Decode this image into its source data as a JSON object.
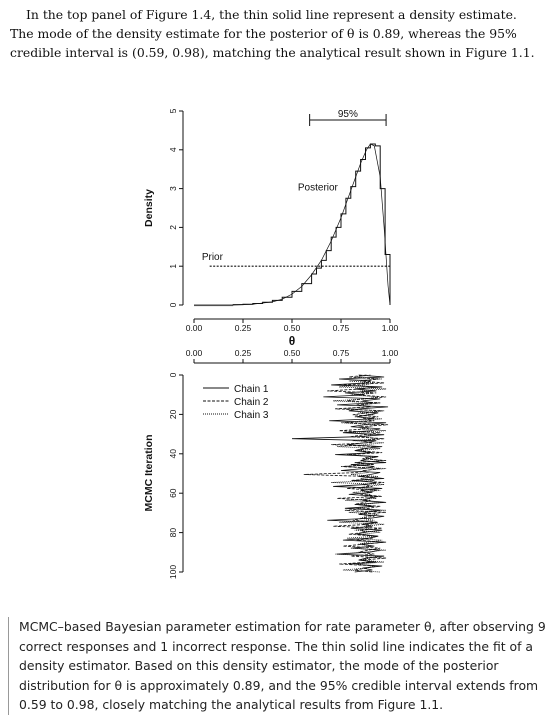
{
  "intro": {
    "lines": [
      "In the top panel of Figure 1.4, the thin solid line represent a density estimate.",
      "The mode of the density estimate for the posterior of θ is 0.89, whereas the 95%",
      "credible interval is (0.59, 0.98), matching the analytical result shown in Figure 1.1."
    ]
  },
  "chart_data": [
    {
      "type": "histogram",
      "xlabel": "θ",
      "ylabel": "Density",
      "xlim": [
        0,
        1
      ],
      "ylim": [
        0,
        5
      ],
      "x_ticks": [
        "0.00",
        "0.25",
        "0.50",
        "0.75",
        "1.00"
      ],
      "y_ticks": [
        "0",
        "1",
        "2",
        "3",
        "4",
        "5"
      ],
      "annotations": {
        "interval": "95%",
        "posterior": "Posterior",
        "prior": "Prior"
      },
      "interval_95": [
        0.59,
        0.98
      ],
      "mode": 0.89,
      "prior_density": 1,
      "bins": {
        "edges": [
          0.2,
          0.25,
          0.3,
          0.35,
          0.4,
          0.45,
          0.5,
          0.55,
          0.6,
          0.625,
          0.65,
          0.675,
          0.7,
          0.725,
          0.75,
          0.775,
          0.8,
          0.825,
          0.85,
          0.875,
          0.9,
          0.925,
          0.95,
          0.975,
          1.0
        ],
        "densities": [
          0.01,
          0.02,
          0.04,
          0.07,
          0.12,
          0.2,
          0.35,
          0.55,
          0.8,
          0.95,
          1.15,
          1.4,
          1.75,
          2.0,
          2.35,
          2.75,
          3.05,
          3.45,
          3.75,
          4.05,
          4.15,
          4.1,
          3.0,
          1.3
        ]
      },
      "density_curve": {
        "x": [
          0.0,
          0.2,
          0.3,
          0.4,
          0.45,
          0.5,
          0.55,
          0.6,
          0.65,
          0.7,
          0.75,
          0.8,
          0.85,
          0.88,
          0.9,
          0.92,
          0.95,
          0.97,
          0.99,
          1.0
        ],
        "y": [
          0.0,
          0.0,
          0.02,
          0.08,
          0.15,
          0.28,
          0.48,
          0.78,
          1.15,
          1.65,
          2.25,
          2.95,
          3.65,
          4.0,
          4.15,
          4.1,
          3.3,
          2.0,
          0.5,
          0.0
        ]
      }
    },
    {
      "type": "line",
      "xlabel": "",
      "ylabel": "MCMC Iteration",
      "xlim": [
        0,
        1
      ],
      "ylim": [
        0,
        100
      ],
      "x_ticks": [
        "0.00",
        "0.25",
        "0.50",
        "0.75",
        "1.00"
      ],
      "y_ticks": [
        "0",
        "20",
        "40",
        "60",
        "80",
        "100"
      ],
      "legend_position": "top-left",
      "series": [
        {
          "name": "Chain 1",
          "style": "solid",
          "values": [
            0.84,
            0.97,
            0.74,
            0.9,
            0.88,
            0.7,
            0.96,
            0.82,
            0.93,
            0.77,
            0.87,
            0.66,
            0.95,
            0.86,
            0.91,
            0.73,
            0.99,
            0.85,
            0.79,
            0.94,
            0.89,
            0.83,
            0.92,
            0.69,
            0.98,
            0.87,
            0.8,
            0.95,
            0.9,
            0.76,
            0.97,
            0.84,
            0.5,
            0.93,
            0.88,
            0.78,
            0.96,
            0.86,
            0.82,
            0.91,
            0.72,
            0.94,
            0.89,
            0.85,
            0.98,
            0.8,
            0.92,
            0.87,
            0.75,
            0.95,
            0.9,
            0.84,
            0.97,
            0.81,
            0.93,
            0.88,
            0.71,
            0.96,
            0.85,
            0.91,
            0.79,
            0.94,
            0.89,
            0.86,
            0.98,
            0.82,
            0.92,
            0.77,
            0.95,
            0.88,
            0.84,
            0.97,
            0.9,
            0.68,
            0.93,
            0.86,
            0.91,
            0.8,
            0.96,
            0.87,
            0.83,
            0.94,
            0.89,
            0.76,
            0.98,
            0.85,
            0.92,
            0.81,
            0.95,
            0.9,
            0.73,
            0.97,
            0.88,
            0.84,
            0.93,
            0.79,
            0.96,
            0.86,
            0.91,
            0.82
          ]
        },
        {
          "name": "Chain 2",
          "style": "dashed",
          "values": [
            0.88,
            0.79,
            0.94,
            0.85,
            0.97,
            0.76,
            0.91,
            0.86,
            0.68,
            0.93,
            0.82,
            0.98,
            0.87,
            0.78,
            0.95,
            0.83,
            0.9,
            0.72,
            0.96,
            0.88,
            0.81,
            0.94,
            0.86,
            0.92,
            0.77,
            0.99,
            0.84,
            0.89,
            0.74,
            0.95,
            0.87,
            0.8,
            0.97,
            0.85,
            0.91,
            0.7,
            0.93,
            0.88,
            0.83,
            0.96,
            0.79,
            0.9,
            0.86,
            0.98,
            0.82,
            0.92,
            0.75,
            0.95,
            0.87,
            0.84,
            0.56,
            0.89,
            0.94,
            0.8,
            0.97,
            0.86,
            0.91,
            0.78,
            0.93,
            0.88,
            0.85,
            0.96,
            0.73,
            0.9,
            0.87,
            0.82,
            0.95,
            0.89,
            0.77,
            0.98,
            0.84,
            0.92,
            0.86,
            0.81,
            0.94,
            0.9,
            0.71,
            0.96,
            0.85,
            0.88,
            0.79,
            0.93,
            0.91,
            0.83,
            0.97,
            0.87,
            0.76,
            0.95,
            0.89,
            0.84,
            0.92,
            0.8,
            0.98,
            0.86,
            0.9,
            0.74,
            0.94,
            0.88,
            0.82,
            0.91
          ]
        },
        {
          "name": "Chain 3",
          "style": "dotted",
          "values": [
            0.9,
            0.83,
            0.96,
            0.79,
            0.92,
            0.87,
            0.74,
            0.98,
            0.85,
            0.91,
            0.8,
            0.94,
            0.88,
            0.71,
            0.95,
            0.86,
            0.89,
            0.77,
            0.97,
            0.84,
            0.92,
            0.82,
            0.96,
            0.87,
            0.75,
            0.93,
            0.89,
            0.85,
            0.98,
            0.79,
            0.91,
            0.86,
            0.94,
            0.81,
            0.97,
            0.88,
            0.73,
            0.95,
            0.84,
            0.9,
            0.78,
            0.93,
            0.87,
            0.96,
            0.83,
            0.91,
            0.76,
            0.98,
            0.86,
            0.89,
            0.8,
            0.94,
            0.85,
            0.92,
            0.7,
            0.97,
            0.88,
            0.84,
            0.95,
            0.81,
            0.9,
            0.87,
            0.93,
            0.77,
            0.96,
            0.86,
            0.91,
            0.83,
            0.98,
            0.79,
            0.94,
            0.88,
            0.85,
            0.92,
            0.74,
            0.97,
            0.87,
            0.9,
            0.82,
            0.95,
            0.86,
            0.93,
            0.78,
            0.96,
            0.89,
            0.84,
            0.91,
            0.8,
            0.98,
            0.87,
            0.72,
            0.94,
            0.9,
            0.85,
            0.97,
            0.83,
            0.92,
            0.88,
            0.76,
            0.95
          ]
        }
      ]
    }
  ],
  "caption": {
    "lines": [
      "MCMC–based Bayesian parameter estimation for rate parameter θ, after observing 9",
      "correct responses and 1 incorrect response. The thin solid line indicates the fit of a",
      "density estimator. Based on this density estimator, the mode of the posterior",
      "distribution for θ is approximately 0.89, and the 95% credible interval extends from",
      "0.59 to 0.98, closely matching the analytical results from Figure 1.1."
    ]
  }
}
